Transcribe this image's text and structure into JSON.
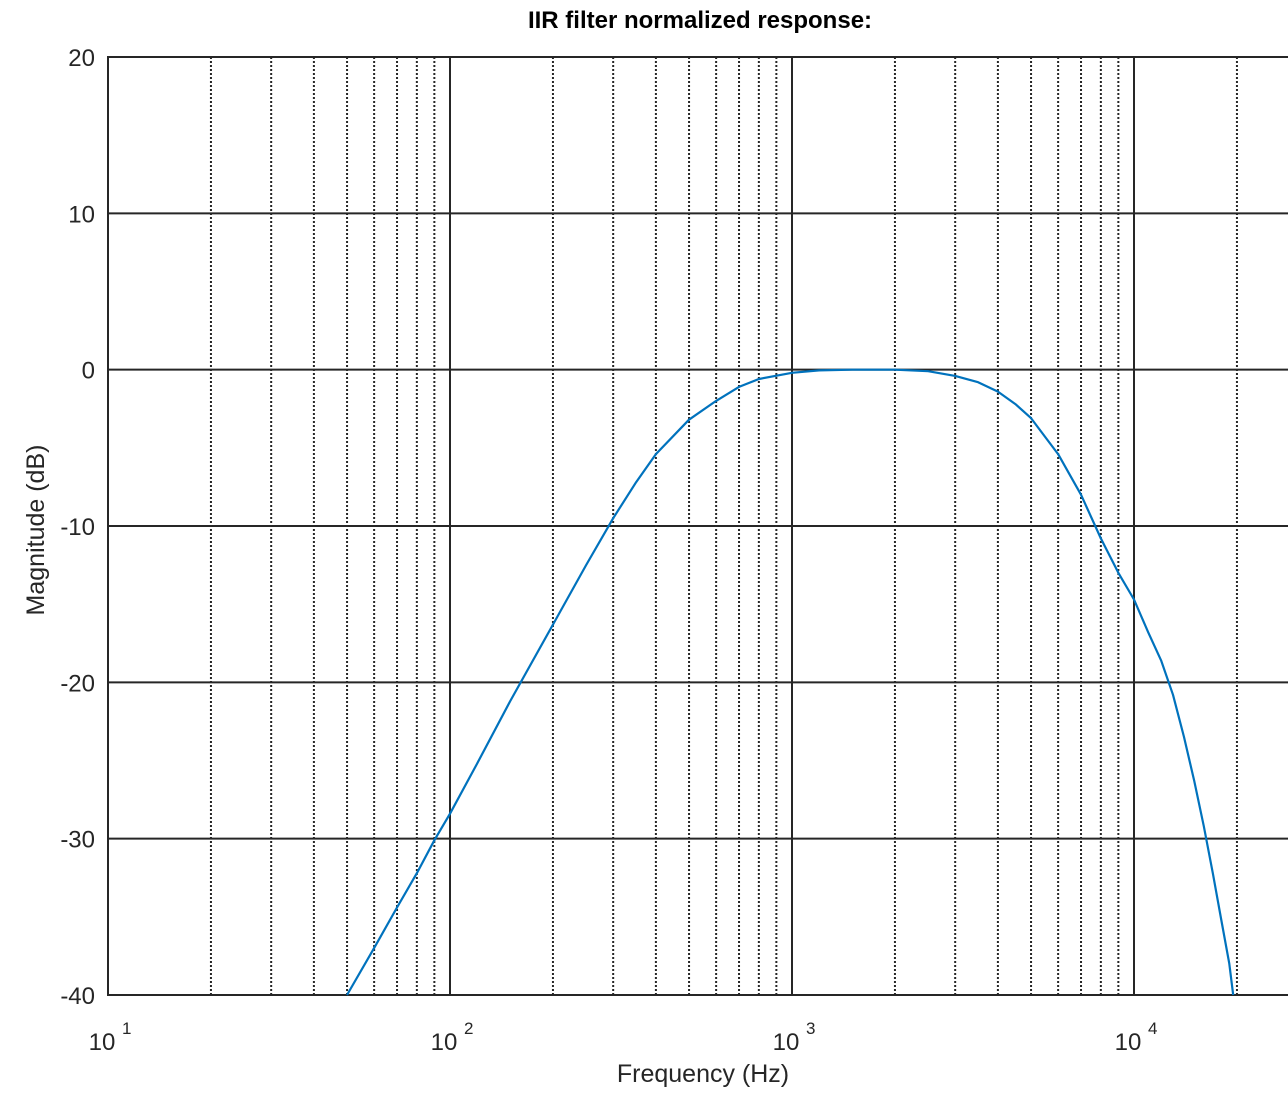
{
  "chart_data": {
    "type": "line",
    "title": "IIR filter normalized response:",
    "xlabel": "Frequency (Hz)",
    "ylabel": "Magnitude (dB)",
    "x_scale": "log",
    "xlim": [
      10,
      20000
    ],
    "ylim": [
      -40,
      20
    ],
    "grid": "on",
    "x_ticks": [
      {
        "base": "10",
        "exp": "1",
        "value": 10
      },
      {
        "base": "10",
        "exp": "2",
        "value": 100
      },
      {
        "base": "10",
        "exp": "3",
        "value": 1000
      },
      {
        "base": "10",
        "exp": "4",
        "value": 10000
      }
    ],
    "y_ticks": [
      20,
      10,
      0,
      -10,
      -20,
      -30,
      -40
    ],
    "series": [
      {
        "color": "#0072BD",
        "points": [
          [
            50,
            -40
          ],
          [
            60,
            -37.0
          ],
          [
            70,
            -34.4
          ],
          [
            80,
            -32.2
          ],
          [
            90,
            -30.1
          ],
          [
            100,
            -28.4
          ],
          [
            120,
            -25.2
          ],
          [
            150,
            -21.2
          ],
          [
            200,
            -16.3
          ],
          [
            250,
            -12.5
          ],
          [
            300,
            -9.5
          ],
          [
            350,
            -7.2
          ],
          [
            400,
            -5.4
          ],
          [
            500,
            -3.2
          ],
          [
            600,
            -2.0
          ],
          [
            700,
            -1.1
          ],
          [
            800,
            -0.6
          ],
          [
            1000,
            -0.2
          ],
          [
            1200,
            -0.05
          ],
          [
            1500,
            0
          ],
          [
            2000,
            0
          ],
          [
            2500,
            -0.1
          ],
          [
            3000,
            -0.4
          ],
          [
            3500,
            -0.8
          ],
          [
            4000,
            -1.4
          ],
          [
            4500,
            -2.2
          ],
          [
            5000,
            -3.1
          ],
          [
            6000,
            -5.4
          ],
          [
            7000,
            -8.0
          ],
          [
            8000,
            -10.8
          ],
          [
            9000,
            -13.0
          ],
          [
            10000,
            -14.7
          ],
          [
            11000,
            -16.8
          ],
          [
            12000,
            -18.6
          ],
          [
            13000,
            -20.8
          ],
          [
            14000,
            -23.5
          ],
          [
            15000,
            -26.3
          ],
          [
            16000,
            -29.2
          ],
          [
            17000,
            -32.2
          ],
          [
            18000,
            -35.2
          ],
          [
            19000,
            -38.0
          ],
          [
            19500,
            -40
          ]
        ]
      }
    ]
  }
}
